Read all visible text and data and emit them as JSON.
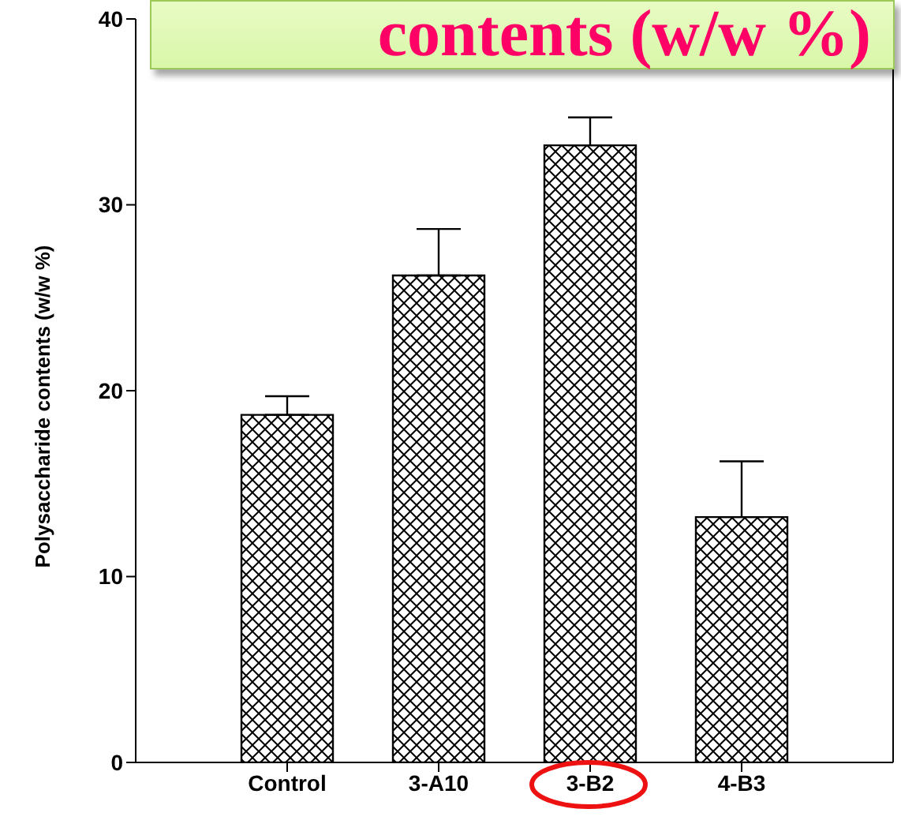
{
  "chart_data": {
    "type": "bar",
    "title": "contents (w/w %)",
    "ylabel": "Polysaccharide contents (w/w %)",
    "categories": [
      "Control",
      "3-A10",
      "3-B2",
      "4-B3"
    ],
    "values": [
      18.7,
      26.2,
      33.2,
      13.2
    ],
    "errors": [
      [
        18.7,
        19.7
      ],
      [
        26.2,
        28.7
      ],
      [
        33.2,
        34.7
      ],
      [
        13.2,
        16.2
      ]
    ],
    "color": "#000000",
    "ylim": [
      0,
      40
    ],
    "yticks": [
      0,
      10,
      20,
      30,
      40
    ],
    "grid": false,
    "legend": false
  }
}
